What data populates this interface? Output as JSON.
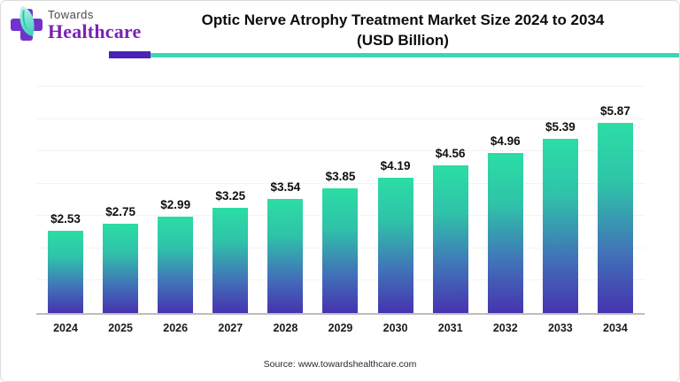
{
  "brand": {
    "name_top": "Towards",
    "name_bottom": "Healthcare",
    "cross_color": "#7233cc",
    "leaf_color": "#38cfb8",
    "serif_color": "#7b22b5"
  },
  "header": {
    "title_line1": "Optic Nerve Atrophy Treatment Market Size 2024 to 2034",
    "title_line2": "(USD Billion)"
  },
  "divider": {
    "purple": "#4a22b4",
    "teal": "#3bd6b4"
  },
  "chart_data": {
    "type": "bar",
    "title": "Optic Nerve Atrophy Treatment Market Size 2024 to 2034 (USD Billion)",
    "categories": [
      "2024",
      "2025",
      "2026",
      "2027",
      "2028",
      "2029",
      "2030",
      "2031",
      "2032",
      "2033",
      "2034"
    ],
    "values": [
      2.53,
      2.75,
      2.99,
      3.25,
      3.54,
      3.85,
      4.19,
      4.56,
      4.96,
      5.39,
      5.87
    ],
    "value_labels": [
      "$2.53",
      "$2.75",
      "$2.99",
      "$3.25",
      "$3.54",
      "$3.85",
      "$4.19",
      "$4.56",
      "$4.96",
      "$5.39",
      "$5.87"
    ],
    "xlabel": "",
    "ylabel": "",
    "ylim": [
      0,
      7
    ],
    "gridlines": [
      1,
      2,
      3,
      4,
      5,
      6,
      7
    ],
    "grid": "horizontal-faint",
    "legend": "none",
    "bar_gradient": [
      "#2bdda5",
      "#2fc3a9",
      "#4173b8",
      "#4633b0"
    ]
  },
  "footer": {
    "source": "Source: www.towardshealthcare.com"
  }
}
